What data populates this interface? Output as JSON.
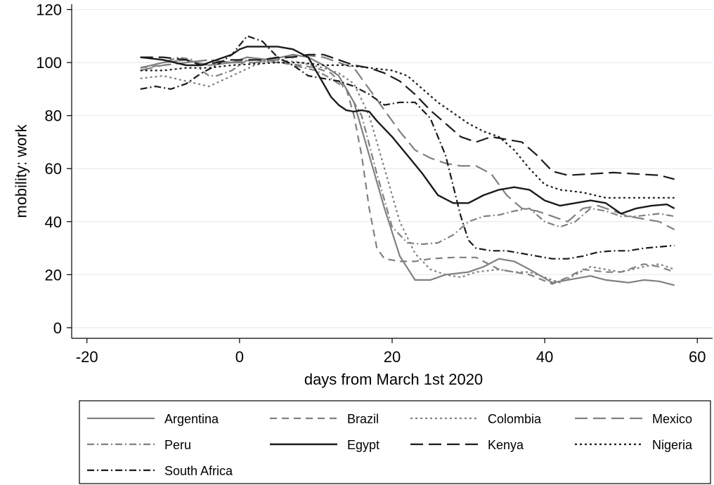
{
  "chart_data": {
    "type": "line",
    "xlabel": "days from March 1st 2020",
    "ylabel": "mobility: work",
    "xlim": [
      -22,
      62
    ],
    "ylim": [
      -4,
      122
    ],
    "xticks": [
      -20,
      0,
      20,
      40,
      60
    ],
    "yticks": [
      0,
      20,
      40,
      60,
      80,
      100,
      120
    ],
    "grid": "horizontal",
    "legend_position": "bottom",
    "series": [
      {
        "name": "Argentina",
        "color": "#808080",
        "dash": "solid",
        "width": 2.2,
        "points": [
          [
            -13,
            98
          ],
          [
            -10,
            100
          ],
          [
            -7,
            101
          ],
          [
            -4,
            99
          ],
          [
            -1,
            100
          ],
          [
            1,
            102
          ],
          [
            4,
            101
          ],
          [
            7,
            103
          ],
          [
            9,
            102
          ],
          [
            11,
            99
          ],
          [
            13,
            95
          ],
          [
            15,
            85
          ],
          [
            17,
            65
          ],
          [
            19,
            45
          ],
          [
            21,
            27
          ],
          [
            23,
            18
          ],
          [
            25,
            18
          ],
          [
            27,
            20
          ],
          [
            30,
            21
          ],
          [
            32,
            23
          ],
          [
            34,
            26
          ],
          [
            36,
            25
          ],
          [
            38,
            22
          ],
          [
            41,
            17
          ],
          [
            43,
            18
          ],
          [
            46,
            19.5
          ],
          [
            48,
            18
          ],
          [
            51,
            17
          ],
          [
            53,
            18
          ],
          [
            55,
            17.5
          ],
          [
            57,
            16
          ]
        ]
      },
      {
        "name": "Brazil",
        "color": "#808080",
        "dash": "10,7",
        "width": 2.2,
        "points": [
          [
            -13,
            98
          ],
          [
            -10,
            99
          ],
          [
            -7,
            100
          ],
          [
            -4,
            101
          ],
          [
            -1,
            100
          ],
          [
            2,
            101
          ],
          [
            5,
            100
          ],
          [
            8,
            99
          ],
          [
            10,
            98
          ],
          [
            12,
            96
          ],
          [
            14,
            90
          ],
          [
            15,
            80
          ],
          [
            16,
            65
          ],
          [
            17,
            45
          ],
          [
            18,
            30
          ],
          [
            19,
            26
          ],
          [
            21,
            25
          ],
          [
            23,
            25
          ],
          [
            25,
            26
          ],
          [
            28,
            26.5
          ],
          [
            31,
            26.5
          ],
          [
            34,
            22
          ],
          [
            36,
            21
          ],
          [
            38,
            20
          ],
          [
            41,
            16.5
          ],
          [
            43,
            19
          ],
          [
            45,
            22
          ],
          [
            48,
            21
          ],
          [
            50,
            21
          ],
          [
            53,
            24
          ],
          [
            55,
            23
          ],
          [
            57,
            21
          ]
        ]
      },
      {
        "name": "Colombia",
        "color": "#808080",
        "dash": "3,4",
        "width": 2.2,
        "points": [
          [
            -13,
            94
          ],
          [
            -10,
            95
          ],
          [
            -7,
            93
          ],
          [
            -4,
            91
          ],
          [
            -1,
            95
          ],
          [
            2,
            99
          ],
          [
            5,
            101
          ],
          [
            8,
            100
          ],
          [
            11,
            98
          ],
          [
            13,
            96
          ],
          [
            15,
            92
          ],
          [
            17,
            80
          ],
          [
            19,
            60
          ],
          [
            21,
            40
          ],
          [
            23,
            28
          ],
          [
            25,
            22
          ],
          [
            27,
            20
          ],
          [
            29,
            19
          ],
          [
            31,
            21
          ],
          [
            34,
            22
          ],
          [
            36,
            21
          ],
          [
            38,
            21
          ],
          [
            40,
            19
          ],
          [
            42,
            17
          ],
          [
            44,
            20
          ],
          [
            46,
            23
          ],
          [
            48,
            22
          ],
          [
            50,
            21
          ],
          [
            53,
            23
          ],
          [
            55,
            24
          ],
          [
            57,
            22
          ]
        ]
      },
      {
        "name": "Mexico",
        "color": "#808080",
        "dash": "18,8",
        "width": 2.2,
        "points": [
          [
            -13,
            97
          ],
          [
            -10,
            99
          ],
          [
            -7,
            100
          ],
          [
            -4,
            101
          ],
          [
            -1,
            100
          ],
          [
            2,
            100
          ],
          [
            5,
            101
          ],
          [
            8,
            103
          ],
          [
            11,
            102
          ],
          [
            13,
            100
          ],
          [
            15,
            98
          ],
          [
            17,
            90
          ],
          [
            19,
            82
          ],
          [
            21,
            74
          ],
          [
            23,
            67
          ],
          [
            25,
            64
          ],
          [
            27,
            62
          ],
          [
            29,
            61
          ],
          [
            31,
            61
          ],
          [
            33,
            58
          ],
          [
            35,
            50
          ],
          [
            37,
            45
          ],
          [
            39,
            44
          ],
          [
            41,
            42
          ],
          [
            43,
            40
          ],
          [
            45,
            45
          ],
          [
            47,
            46
          ],
          [
            49,
            44
          ],
          [
            51,
            42
          ],
          [
            53,
            41
          ],
          [
            55,
            40
          ],
          [
            57,
            37
          ]
        ]
      },
      {
        "name": "Peru",
        "color": "#808080",
        "dash": "10,4,2,4",
        "width": 2.2,
        "points": [
          [
            -13,
            98
          ],
          [
            -10,
            100
          ],
          [
            -8,
            102
          ],
          [
            -6,
            101
          ],
          [
            -5,
            97
          ],
          [
            -4,
            95
          ],
          [
            -3,
            95
          ],
          [
            -1,
            97
          ],
          [
            1,
            101
          ],
          [
            4,
            101
          ],
          [
            7,
            99
          ],
          [
            10,
            97
          ],
          [
            12,
            94
          ],
          [
            14,
            90
          ],
          [
            16,
            80
          ],
          [
            18,
            58
          ],
          [
            20,
            38
          ],
          [
            22,
            32
          ],
          [
            24,
            31.5
          ],
          [
            26,
            32
          ],
          [
            28,
            35
          ],
          [
            30,
            40
          ],
          [
            32,
            42
          ],
          [
            34,
            42.5
          ],
          [
            36,
            44
          ],
          [
            38,
            45
          ],
          [
            40,
            40
          ],
          [
            42,
            38
          ],
          [
            44,
            40
          ],
          [
            46,
            45
          ],
          [
            48,
            44
          ],
          [
            50,
            42
          ],
          [
            52,
            42
          ],
          [
            55,
            43
          ],
          [
            57,
            42
          ]
        ]
      },
      {
        "name": "Egypt",
        "color": "#1a1a1a",
        "dash": "solid",
        "width": 2.4,
        "points": [
          [
            -13,
            102
          ],
          [
            -10,
            101
          ],
          [
            -7,
            99
          ],
          [
            -5,
            99
          ],
          [
            -3,
            101
          ],
          [
            -1,
            103
          ],
          [
            0,
            105
          ],
          [
            1,
            106
          ],
          [
            3,
            106
          ],
          [
            5,
            106
          ],
          [
            7,
            105
          ],
          [
            9,
            102
          ],
          [
            10,
            97
          ],
          [
            11,
            92
          ],
          [
            12,
            87
          ],
          [
            13,
            84
          ],
          [
            14,
            82
          ],
          [
            15,
            81.5
          ],
          [
            16,
            82
          ],
          [
            17,
            81.5
          ],
          [
            18,
            78
          ],
          [
            20,
            72
          ],
          [
            22,
            65
          ],
          [
            24,
            58
          ],
          [
            26,
            50
          ],
          [
            28,
            47
          ],
          [
            30,
            47
          ],
          [
            32,
            50
          ],
          [
            34,
            52
          ],
          [
            36,
            53
          ],
          [
            38,
            52
          ],
          [
            40,
            48
          ],
          [
            42,
            46
          ],
          [
            44,
            47
          ],
          [
            46,
            48
          ],
          [
            48,
            47
          ],
          [
            50,
            43
          ],
          [
            52,
            45
          ],
          [
            54,
            46
          ],
          [
            56,
            46.5
          ],
          [
            57,
            45
          ]
        ]
      },
      {
        "name": "Kenya",
        "color": "#1a1a1a",
        "dash": "18,8",
        "width": 2.2,
        "points": [
          [
            -13,
            102
          ],
          [
            -10,
            102
          ],
          [
            -7,
            101
          ],
          [
            -5,
            99
          ],
          [
            -3,
            100
          ],
          [
            -1,
            101
          ],
          [
            1,
            101
          ],
          [
            3,
            101
          ],
          [
            5,
            102
          ],
          [
            7,
            102
          ],
          [
            9,
            103
          ],
          [
            11,
            103
          ],
          [
            13,
            101
          ],
          [
            15,
            99
          ],
          [
            17,
            98
          ],
          [
            19,
            96
          ],
          [
            21,
            93
          ],
          [
            23,
            88
          ],
          [
            25,
            82
          ],
          [
            27,
            77
          ],
          [
            29,
            72
          ],
          [
            31,
            70
          ],
          [
            33,
            72
          ],
          [
            35,
            71
          ],
          [
            37,
            70
          ],
          [
            39,
            65
          ],
          [
            41,
            59
          ],
          [
            43,
            57.5
          ],
          [
            46,
            58
          ],
          [
            49,
            58.5
          ],
          [
            52,
            58
          ],
          [
            55,
            57.5
          ],
          [
            57,
            56
          ]
        ]
      },
      {
        "name": "Nigeria",
        "color": "#1a1a1a",
        "dash": "3,4",
        "width": 2.2,
        "points": [
          [
            -13,
            97
          ],
          [
            -10,
            97
          ],
          [
            -7,
            98
          ],
          [
            -4,
            98
          ],
          [
            -1,
            99
          ],
          [
            2,
            99.5
          ],
          [
            5,
            100
          ],
          [
            8,
            100
          ],
          [
            11,
            99
          ],
          [
            14,
            99
          ],
          [
            17,
            98
          ],
          [
            20,
            97
          ],
          [
            22,
            95
          ],
          [
            24,
            90
          ],
          [
            26,
            85
          ],
          [
            28,
            81
          ],
          [
            30,
            77
          ],
          [
            32,
            74
          ],
          [
            34,
            72
          ],
          [
            36,
            67
          ],
          [
            38,
            60
          ],
          [
            40,
            54
          ],
          [
            42,
            52
          ],
          [
            45,
            51
          ],
          [
            48,
            49
          ],
          [
            51,
            49
          ],
          [
            54,
            49
          ],
          [
            57,
            49
          ]
        ]
      },
      {
        "name": "South Africa",
        "color": "#1a1a1a",
        "dash": "10,4,2,4",
        "width": 2.2,
        "points": [
          [
            -13,
            90
          ],
          [
            -11,
            91
          ],
          [
            -9,
            90
          ],
          [
            -7,
            92
          ],
          [
            -5,
            96
          ],
          [
            -3,
            99
          ],
          [
            -1,
            103
          ],
          [
            1,
            110
          ],
          [
            3,
            108
          ],
          [
            5,
            102
          ],
          [
            7,
            99
          ],
          [
            9,
            95
          ],
          [
            11,
            94
          ],
          [
            13,
            93
          ],
          [
            15,
            91
          ],
          [
            17,
            88
          ],
          [
            19,
            84
          ],
          [
            21,
            85
          ],
          [
            23,
            85
          ],
          [
            25,
            79
          ],
          [
            27,
            65
          ],
          [
            29,
            42
          ],
          [
            30,
            33
          ],
          [
            31,
            30
          ],
          [
            33,
            29
          ],
          [
            35,
            29
          ],
          [
            37,
            28
          ],
          [
            39,
            27
          ],
          [
            41,
            26
          ],
          [
            43,
            26
          ],
          [
            45,
            27
          ],
          [
            47,
            28.5
          ],
          [
            49,
            29
          ],
          [
            51,
            29
          ],
          [
            53,
            30
          ],
          [
            55,
            30.5
          ],
          [
            57,
            31
          ]
        ]
      }
    ]
  }
}
